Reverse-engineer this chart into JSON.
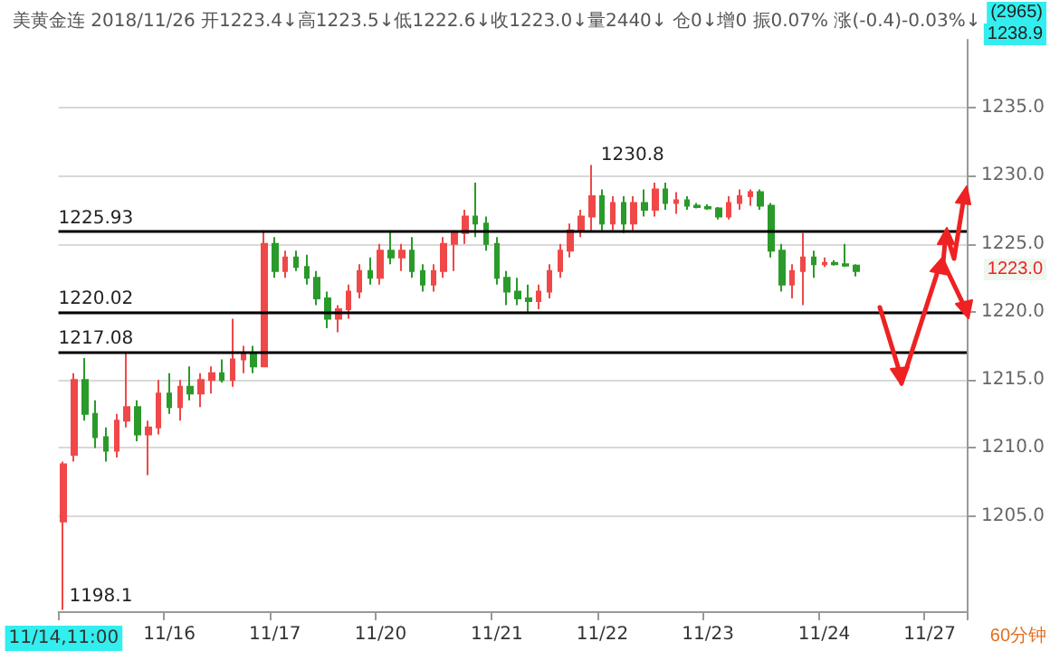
{
  "chart_data": {
    "type": "candlestick",
    "title": "美黄金连 2018/11/26 开1223.4↓高1223.5↓低1222.6↓收1223.0↓量2440↓ 仓0↓增0 振0.07% 涨(-0.4)-0.03%↓",
    "categories": [
      "11/14,11:00",
      null,
      null,
      null,
      null,
      null,
      null,
      null,
      null,
      null,
      "11/16",
      null,
      null,
      null,
      null,
      null,
      null,
      null,
      null,
      null,
      "11/17",
      null,
      null,
      null,
      null,
      null,
      null,
      null,
      null,
      null,
      "11/20",
      null,
      null,
      null,
      null,
      null,
      null,
      null,
      null,
      null,
      null,
      "11/21",
      null,
      null,
      null,
      null,
      null,
      null,
      null,
      null,
      null,
      "11/22",
      null,
      null,
      null,
      null,
      null,
      null,
      null,
      null,
      null,
      "11/23",
      null,
      null,
      null,
      null,
      null,
      null,
      null,
      null,
      null,
      null,
      "11/24",
      null,
      null,
      null,
      null,
      null,
      null,
      null,
      null,
      null,
      "11/27",
      null,
      null,
      null
    ],
    "ohlc": [
      [
        1204.6,
        1209.0,
        1198.1,
        1208.8
      ],
      [
        1209.5,
        1215.5,
        1209.0,
        1215.0
      ],
      [
        1215.0,
        1216.6,
        1212.0,
        1212.5
      ],
      [
        1212.5,
        1213.5,
        1210.0,
        1210.8
      ],
      [
        1210.8,
        1211.5,
        1209.0,
        1209.8
      ],
      [
        1209.8,
        1212.5,
        1209.3,
        1212.0
      ],
      [
        1212.0,
        1217.0,
        1211.5,
        1213.0
      ],
      [
        1213.0,
        1213.5,
        1210.5,
        1211.0
      ],
      [
        1211.0,
        1212.0,
        1208.0,
        1211.5
      ],
      [
        1211.5,
        1215.0,
        1211.0,
        1214.0
      ],
      [
        1214.0,
        1215.5,
        1212.5,
        1213.0
      ],
      [
        1213.0,
        1215.0,
        1212.0,
        1214.5
      ],
      [
        1214.5,
        1216.0,
        1213.5,
        1214.0
      ],
      [
        1214.0,
        1215.5,
        1213.0,
        1215.0
      ],
      [
        1215.0,
        1216.0,
        1214.0,
        1215.5
      ],
      [
        1215.5,
        1216.5,
        1214.8,
        1215.0
      ],
      [
        1215.0,
        1219.5,
        1214.5,
        1216.5
      ],
      [
        1216.5,
        1217.5,
        1215.5,
        1217.0
      ],
      [
        1217.0,
        1217.5,
        1215.5,
        1216.0
      ],
      [
        1216.0,
        1226.0,
        1216.0,
        1225.0
      ],
      [
        1225.0,
        1225.5,
        1222.5,
        1223.0
      ],
      [
        1223.0,
        1224.5,
        1222.5,
        1224.0
      ],
      [
        1224.0,
        1224.5,
        1223.0,
        1223.3
      ],
      [
        1223.3,
        1224.2,
        1222.0,
        1222.5
      ],
      [
        1222.5,
        1223.0,
        1220.5,
        1221.0
      ],
      [
        1221.0,
        1221.5,
        1218.8,
        1219.5
      ],
      [
        1219.5,
        1220.5,
        1218.5,
        1220.2
      ],
      [
        1220.2,
        1222.0,
        1219.5,
        1221.5
      ],
      [
        1221.5,
        1223.5,
        1221.0,
        1223.0
      ],
      [
        1223.0,
        1224.0,
        1222.0,
        1222.5
      ],
      [
        1222.5,
        1225.0,
        1222.0,
        1224.5
      ],
      [
        1224.5,
        1226.0,
        1223.5,
        1224.0
      ],
      [
        1224.0,
        1225.0,
        1223.0,
        1224.5
      ],
      [
        1224.5,
        1225.5,
        1222.5,
        1223.0
      ],
      [
        1223.0,
        1223.5,
        1221.5,
        1222.0
      ],
      [
        1222.0,
        1223.5,
        1221.5,
        1223.0
      ],
      [
        1223.0,
        1225.5,
        1222.5,
        1225.0
      ],
      [
        1225.0,
        1226.0,
        1223.0,
        1225.8
      ],
      [
        1225.8,
        1227.5,
        1225.0,
        1227.0
      ],
      [
        1227.0,
        1229.5,
        1225.5,
        1226.5
      ],
      [
        1226.5,
        1227.0,
        1224.5,
        1225.0
      ],
      [
        1225.0,
        1225.5,
        1222.0,
        1222.5
      ],
      [
        1222.5,
        1223.0,
        1220.5,
        1221.5
      ],
      [
        1221.5,
        1222.5,
        1220.5,
        1221.0
      ],
      [
        1221.0,
        1222.0,
        1220.0,
        1220.8
      ],
      [
        1220.8,
        1222.0,
        1220.2,
        1221.5
      ],
      [
        1221.5,
        1223.5,
        1221.0,
        1223.0
      ],
      [
        1223.0,
        1225.0,
        1222.5,
        1224.5
      ],
      [
        1224.5,
        1226.5,
        1224.0,
        1226.0
      ],
      [
        1226.0,
        1227.5,
        1225.5,
        1227.0
      ],
      [
        1227.0,
        1230.8,
        1226.0,
        1228.5
      ],
      [
        1228.5,
        1229.0,
        1226.0,
        1226.5
      ],
      [
        1226.5,
        1228.5,
        1226.0,
        1228.0
      ],
      [
        1228.0,
        1228.5,
        1225.8,
        1226.5
      ],
      [
        1226.5,
        1228.5,
        1226.0,
        1228.0
      ],
      [
        1228.0,
        1229.0,
        1227.0,
        1227.5
      ],
      [
        1227.5,
        1229.5,
        1227.0,
        1229.0
      ],
      [
        1229.0,
        1229.5,
        1227.5,
        1228.0
      ],
      [
        1228.0,
        1228.8,
        1227.2,
        1228.2
      ],
      [
        1228.2,
        1228.5,
        1227.5,
        1227.8
      ],
      [
        1227.8,
        1228.0,
        1227.6,
        1227.7
      ],
      [
        1227.7,
        1227.9,
        1227.5,
        1227.6
      ],
      [
        1227.6,
        1227.7,
        1226.8,
        1227.0
      ],
      [
        1227.0,
        1228.5,
        1226.8,
        1228.0
      ],
      [
        1228.0,
        1229.0,
        1227.5,
        1228.5
      ],
      [
        1228.5,
        1229.0,
        1227.8,
        1228.8
      ],
      [
        1228.8,
        1229.0,
        1227.5,
        1227.8
      ],
      [
        1227.8,
        1228.0,
        1224.0,
        1224.5
      ],
      [
        1224.5,
        1225.0,
        1221.5,
        1222.0
      ],
      [
        1222.0,
        1223.5,
        1221.0,
        1223.0
      ],
      [
        1223.0,
        1225.8,
        1220.5,
        1224.0
      ],
      [
        1224.0,
        1224.5,
        1222.5,
        1223.5
      ],
      [
        1223.5,
        1224.0,
        1223.3,
        1223.6
      ],
      [
        1223.6,
        1223.8,
        1223.4,
        1223.5
      ],
      [
        1223.5,
        1225.0,
        1223.3,
        1223.4
      ],
      [
        1223.4,
        1223.5,
        1222.6,
        1223.0
      ],
      null,
      null,
      null,
      null,
      null,
      null,
      null,
      null,
      null,
      null
    ],
    "colors": [
      "#f04848",
      "#f04848",
      "#2a9a2a",
      "#2a9a2a",
      "#2a9a2a",
      "#f04848",
      "#f04848",
      "#2a9a2a",
      "#f04848",
      "#f04848",
      "#2a9a2a",
      "#f04848",
      "#2a9a2a",
      "#f04848",
      "#f04848",
      "#2a9a2a",
      "#f04848",
      "#f04848",
      "#2a9a2a",
      "#f04848",
      "#2a9a2a",
      "#f04848",
      "#2a9a2a",
      "#2a9a2a",
      "#2a9a2a",
      "#2a9a2a",
      "#f04848",
      "#f04848",
      "#f04848",
      "#2a9a2a",
      "#f04848",
      "#2a9a2a",
      "#f04848",
      "#2a9a2a",
      "#2a9a2a",
      "#f04848",
      "#f04848",
      "#f04848",
      "#f04848",
      "#2a9a2a",
      "#2a9a2a",
      "#2a9a2a",
      "#2a9a2a",
      "#2a9a2a",
      "#2a9a2a",
      "#f04848",
      "#f04848",
      "#f04848",
      "#f04848",
      "#f04848",
      "#f04848",
      "#2a9a2a",
      "#f04848",
      "#2a9a2a",
      "#f04848",
      "#2a9a2a",
      "#f04848",
      "#2a9a2a",
      "#f04848",
      "#2a9a2a",
      "#2a9a2a",
      "#2a9a2a",
      "#2a9a2a",
      "#f04848",
      "#f04848",
      "#f04848",
      "#2a9a2a",
      "#2a9a2a",
      "#2a9a2a",
      "#f04848",
      "#f04848",
      "#2a9a2a",
      "#f04848",
      "#2a9a2a",
      "#2a9a2a",
      "#2a9a2a",
      null,
      null,
      null,
      null,
      null,
      null,
      null,
      null,
      null,
      null
    ],
    "value_labels": [
      "1198.1",
      null,
      null,
      null,
      null,
      null,
      null,
      null,
      null,
      null,
      null,
      null,
      null,
      null,
      null,
      null,
      null,
      null,
      null,
      null,
      null,
      null,
      null,
      null,
      null,
      null,
      null,
      null,
      null,
      null,
      null,
      null,
      null,
      null,
      null,
      null,
      null,
      null,
      null,
      null,
      null,
      null,
      null,
      null,
      null,
      null,
      null,
      null,
      null,
      null,
      "1230.8",
      null,
      null,
      null,
      null,
      null,
      null,
      null,
      null,
      null,
      null,
      null,
      null,
      null,
      null,
      null,
      null,
      null,
      null,
      null,
      null,
      null,
      null,
      null,
      null,
      null,
      null,
      null,
      null,
      null,
      null,
      null,
      null,
      null,
      null,
      null
    ],
    "ylim": [
      1198,
      1240
    ],
    "yticks": [
      {
        "value": 1205,
        "label": "1205.0"
      },
      {
        "value": 1210,
        "label": "1210.0"
      },
      {
        "value": 1215,
        "label": "1215.0"
      },
      {
        "value": 1220,
        "label": "1220.0"
      },
      {
        "value": 1225,
        "label": "1225.0"
      },
      {
        "value": 1230,
        "label": "1230.0"
      },
      {
        "value": 1235,
        "label": "1235.0"
      }
    ],
    "grid": "y",
    "ref_lines": [
      {
        "axis": "y",
        "value": 1225.93,
        "label": "1225.93",
        "color": "#000000"
      },
      {
        "axis": "y",
        "value": 1220.02,
        "label": "1220.02",
        "color": "#000000"
      },
      {
        "axis": "y",
        "value": 1217.08,
        "label": "1217.08",
        "color": "#000000"
      }
    ],
    "annotations": [
      "(2965)",
      "1238.9",
      "1223.0",
      "60分钟"
    ]
  }
}
